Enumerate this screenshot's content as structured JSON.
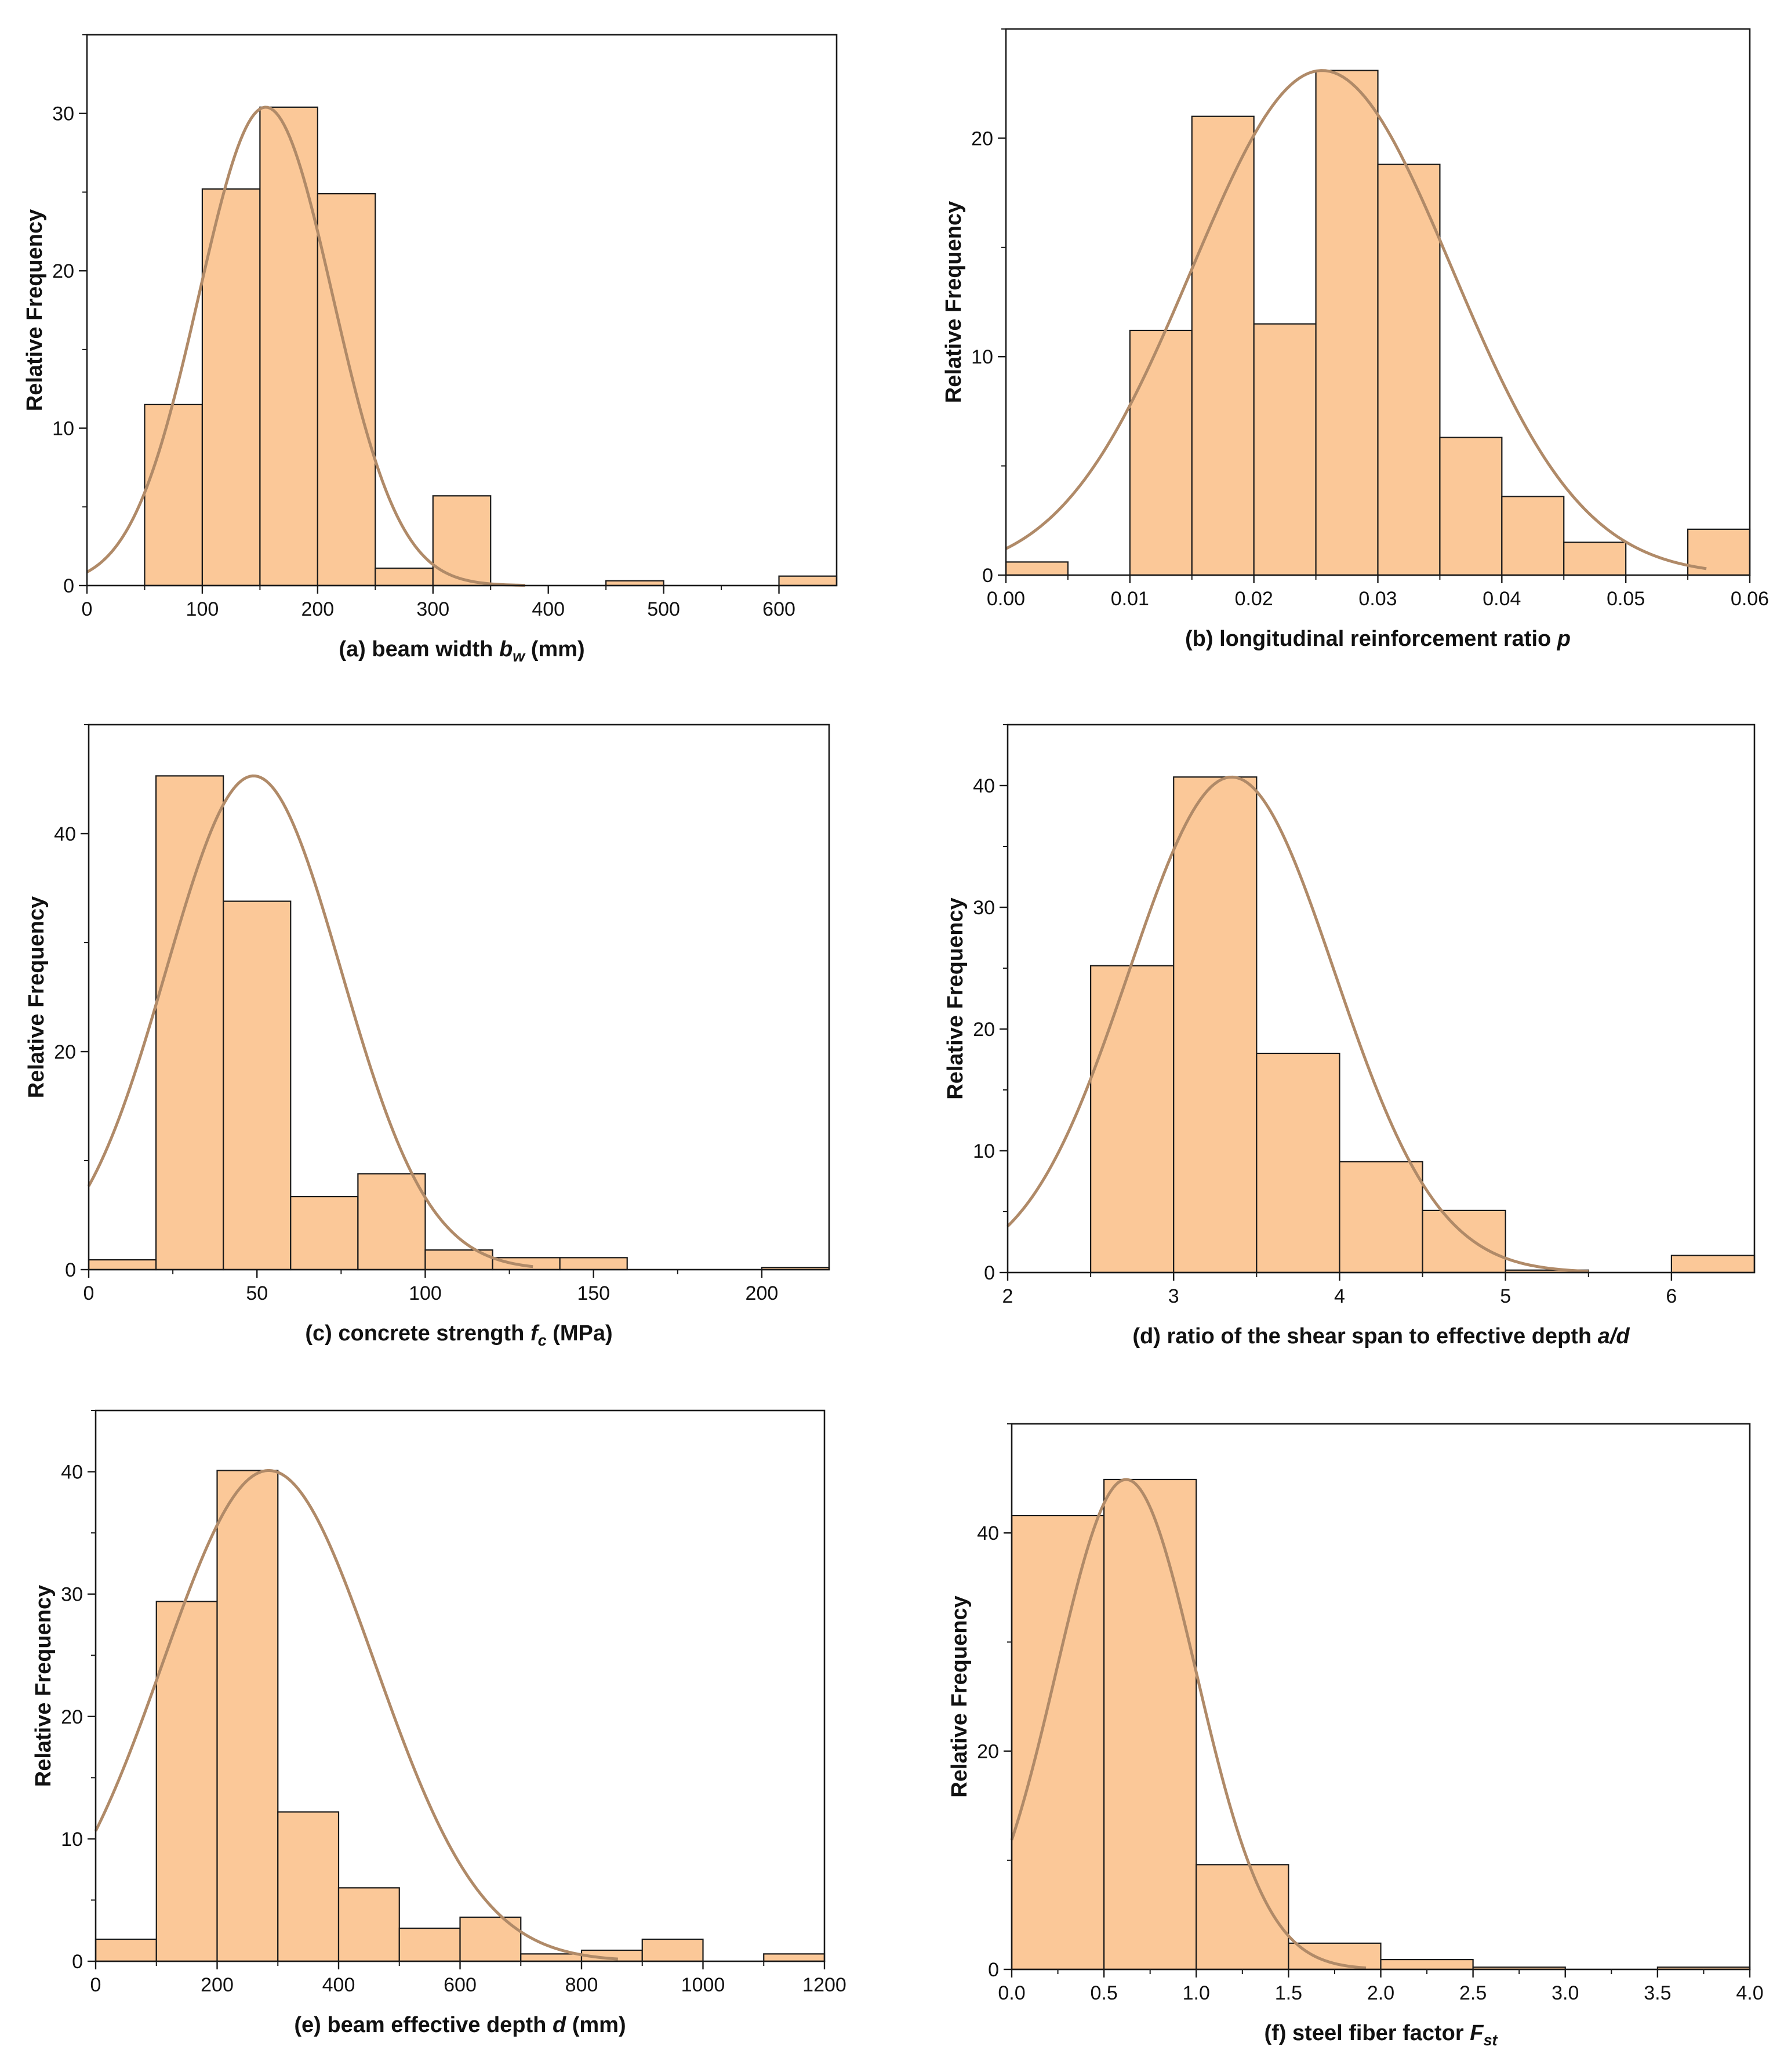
{
  "colors": {
    "bar_fill": "#FBC898",
    "bar_edge": "#1a1a1a",
    "fit_curve": "#B08A68"
  },
  "chart_data": [
    {
      "id": "a",
      "type": "bar",
      "title": "",
      "xlabel_prefix": "(a) beam width ",
      "xlabel_var": "b",
      "xlabel_sub": "w",
      "xlabel_suffix": " (mm)",
      "ylabel": "Relative Frequency",
      "xlim": [
        0,
        650
      ],
      "ylim": [
        0,
        35
      ],
      "xticks": [
        0,
        100,
        200,
        300,
        400,
        500,
        600
      ],
      "xtick_labels": [
        "0",
        "100",
        "200",
        "300",
        "400",
        "500",
        "600"
      ],
      "yticks": [
        0,
        10,
        20,
        30
      ],
      "ytick_labels": [
        "0",
        "10",
        "20",
        "30"
      ],
      "bin_edges": [
        0,
        50,
        100,
        150,
        200,
        250,
        300,
        350,
        400,
        450,
        500,
        550,
        600,
        650
      ],
      "values": [
        0,
        11.5,
        25.2,
        30.4,
        24.9,
        1.1,
        5.7,
        0,
        0,
        0.3,
        0,
        0,
        0.6
      ],
      "fit_curve": {
        "type": "normal",
        "mean": 155,
        "sd": 58,
        "peak": 30.4,
        "x_range": [
          0,
          380
        ]
      }
    },
    {
      "id": "b",
      "type": "bar",
      "title": "",
      "xlabel_prefix": "(b) longitudinal reinforcement ratio ",
      "xlabel_var": "p",
      "xlabel_sub": "",
      "xlabel_suffix": "",
      "ylabel": "Relative Frequency",
      "xlim": [
        0,
        0.06
      ],
      "ylim": [
        0,
        25
      ],
      "xticks": [
        0,
        0.01,
        0.02,
        0.03,
        0.04,
        0.05,
        0.06
      ],
      "xtick_labels": [
        "0.00",
        "0.01",
        "0.02",
        "0.03",
        "0.04",
        "0.05",
        "0.06"
      ],
      "yticks": [
        0,
        10,
        20
      ],
      "ytick_labels": [
        "0",
        "10",
        "20"
      ],
      "bin_edges": [
        0,
        0.005,
        0.01,
        0.015,
        0.02,
        0.025,
        0.03,
        0.035,
        0.04,
        0.045,
        0.05,
        0.055,
        0.06
      ],
      "values": [
        0.6,
        0,
        11.2,
        21,
        11.5,
        23.1,
        18.8,
        6.3,
        3.6,
        1.5,
        0,
        2.1
      ],
      "fit_curve": {
        "type": "normal",
        "mean": 0.0255,
        "sd": 0.0105,
        "peak": 23.1,
        "x_range": [
          0,
          0.0565
        ]
      }
    },
    {
      "id": "c",
      "type": "bar",
      "title": "",
      "xlabel_prefix": "(c) concrete strength ",
      "xlabel_var": "f",
      "xlabel_sub": "c",
      "xlabel_suffix": " (MPa)",
      "ylabel": "Relative Frequency",
      "xlim": [
        0,
        220
      ],
      "ylim": [
        0,
        50
      ],
      "xticks": [
        0,
        50,
        100,
        150,
        200
      ],
      "xtick_labels": [
        "0",
        "50",
        "100",
        "150",
        "200"
      ],
      "yticks": [
        0,
        20,
        40
      ],
      "ytick_labels": [
        "0",
        "20",
        "40"
      ],
      "bin_edges": [
        0,
        20,
        40,
        60,
        80,
        100,
        120,
        140,
        160,
        180,
        200,
        220
      ],
      "values": [
        0.9,
        45.3,
        33.8,
        6.7,
        8.8,
        1.8,
        1.1,
        1.1,
        0,
        0,
        0.2
      ],
      "fit_curve": {
        "type": "normal",
        "mean": 49,
        "sd": 26,
        "peak": 45.3,
        "x_range": [
          0,
          132
        ]
      }
    },
    {
      "id": "d",
      "type": "bar",
      "title": "",
      "xlabel_prefix": "(d)  ratio of the shear span to effective depth ",
      "xlabel_var": "a/d",
      "xlabel_sub": "",
      "xlabel_suffix": "",
      "ylabel": "Relative Frequency",
      "xlim": [
        2,
        6.5
      ],
      "ylim": [
        0,
        45
      ],
      "xticks": [
        2,
        3,
        4,
        5,
        6
      ],
      "xtick_labels": [
        "2",
        "3",
        "4",
        "5",
        "6"
      ],
      "yticks": [
        0,
        10,
        20,
        30,
        40
      ],
      "ytick_labels": [
        "0",
        "10",
        "20",
        "30",
        "40"
      ],
      "bin_edges": [
        2,
        2.5,
        3,
        3.5,
        4,
        4.5,
        5,
        5.5,
        6,
        6.5
      ],
      "values": [
        0,
        25.2,
        40.7,
        18,
        9.1,
        5.1,
        0.2,
        0,
        1.4
      ],
      "fit_curve": {
        "type": "normal",
        "mean": 3.35,
        "sd": 0.62,
        "peak": 40.7,
        "x_range": [
          2,
          5.5
        ]
      }
    },
    {
      "id": "e",
      "type": "bar",
      "title": "",
      "xlabel_prefix": "(e) beam effective depth ",
      "xlabel_var": "d",
      "xlabel_sub": "",
      "xlabel_suffix": " (mm)",
      "ylabel": "Relative Frequency",
      "xlim": [
        0,
        1200
      ],
      "ylim": [
        0,
        45
      ],
      "xticks": [
        0,
        200,
        400,
        600,
        800,
        1000,
        1200
      ],
      "xtick_labels": [
        "0",
        "200",
        "400",
        "600",
        "800",
        "1000",
        "1200"
      ],
      "yticks": [
        0,
        10,
        20,
        30,
        40
      ],
      "ytick_labels": [
        "0",
        "10",
        "20",
        "30",
        "40"
      ],
      "bin_edges": [
        0,
        100,
        200,
        300,
        400,
        500,
        600,
        700,
        800,
        900,
        1000,
        1100,
        1200
      ],
      "values": [
        1.8,
        29.4,
        40.1,
        12.2,
        6,
        2.7,
        3.6,
        0.6,
        0.9,
        1.8,
        0,
        0.6
      ],
      "fit_curve": {
        "type": "normal",
        "mean": 285,
        "sd": 175,
        "peak": 40.1,
        "x_range": [
          0,
          860
        ]
      }
    },
    {
      "id": "f",
      "type": "bar",
      "title": "",
      "xlabel_prefix": "(f) steel fiber factor ",
      "xlabel_var": "F",
      "xlabel_sub": "st",
      "xlabel_suffix": "",
      "ylabel": "Relative Frequency",
      "xlim": [
        0,
        4
      ],
      "ylim": [
        0,
        50
      ],
      "xticks": [
        0,
        0.5,
        1,
        1.5,
        2,
        2.5,
        3,
        3.5,
        4
      ],
      "xtick_labels": [
        "0.0",
        "0.5",
        "1.0",
        "1.5",
        "2.0",
        "2.5",
        "3.0",
        "3.5",
        "4.0"
      ],
      "yticks": [
        0,
        20,
        40
      ],
      "ytick_labels": [
        "0",
        "20",
        "40"
      ],
      "bin_edges": [
        0,
        0.5,
        1,
        1.5,
        2,
        2.5,
        3,
        3.5,
        4
      ],
      "values": [
        41.6,
        44.9,
        9.6,
        2.4,
        0.9,
        0.2,
        0,
        0.2
      ],
      "fit_curve": {
        "type": "normal",
        "mean": 0.62,
        "sd": 0.38,
        "peak": 44.9,
        "x_range": [
          0,
          1.92
        ]
      }
    }
  ]
}
